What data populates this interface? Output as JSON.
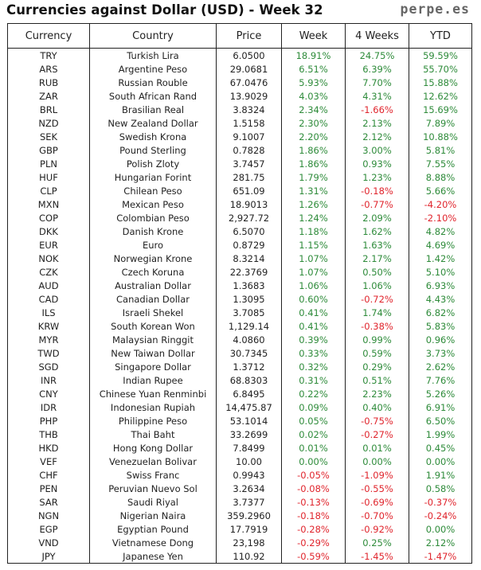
{
  "header": {
    "title": "Currencies against Dollar (USD) - Week 32",
    "site": "perpe.es"
  },
  "columns": [
    "Currency",
    "Country",
    "Price",
    "Week",
    "4 Weeks",
    "YTD"
  ],
  "colors": {
    "positive": "#2e8b3a",
    "negative": "#e0242c"
  },
  "rows": [
    {
      "currency": "TRY",
      "country": "Turkish Lira",
      "price": "6.0500",
      "week": "18.91%",
      "weeks4": "24.75%",
      "ytd": "59.59%"
    },
    {
      "currency": "ARS",
      "country": "Argentine Peso",
      "price": "29.0681",
      "week": "6.51%",
      "weeks4": "6.39%",
      "ytd": "55.70%"
    },
    {
      "currency": "RUB",
      "country": "Russian Rouble",
      "price": "67.0476",
      "week": "5.93%",
      "weeks4": "7.70%",
      "ytd": "15.88%"
    },
    {
      "currency": "ZAR",
      "country": "South African Rand",
      "price": "13.9029",
      "week": "4.03%",
      "weeks4": "4.31%",
      "ytd": "12.62%"
    },
    {
      "currency": "BRL",
      "country": "Brasilian Real",
      "price": "3.8324",
      "week": "2.34%",
      "weeks4": "-1.66%",
      "ytd": "15.69%"
    },
    {
      "currency": "NZD",
      "country": "New Zealand Dollar",
      "price": "1.5158",
      "week": "2.30%",
      "weeks4": "2.13%",
      "ytd": "7.89%"
    },
    {
      "currency": "SEK",
      "country": "Swedish Krona",
      "price": "9.1007",
      "week": "2.20%",
      "weeks4": "2.12%",
      "ytd": "10.88%"
    },
    {
      "currency": "GBP",
      "country": "Pound Sterling",
      "price": "0.7828",
      "week": "1.86%",
      "weeks4": "3.00%",
      "ytd": "5.81%"
    },
    {
      "currency": "PLN",
      "country": "Polish Zloty",
      "price": "3.7457",
      "week": "1.86%",
      "weeks4": "0.93%",
      "ytd": "7.55%"
    },
    {
      "currency": "HUF",
      "country": "Hungarian Forint",
      "price": "281.75",
      "week": "1.79%",
      "weeks4": "1.23%",
      "ytd": "8.88%"
    },
    {
      "currency": "CLP",
      "country": "Chilean Peso",
      "price": "651.09",
      "week": "1.31%",
      "weeks4": "-0.18%",
      "ytd": "5.66%"
    },
    {
      "currency": "MXN",
      "country": "Mexican Peso",
      "price": "18.9013",
      "week": "1.26%",
      "weeks4": "-0.77%",
      "ytd": "-4.20%"
    },
    {
      "currency": "COP",
      "country": "Colombian Peso",
      "price": "2,927.72",
      "week": "1.24%",
      "weeks4": "2.09%",
      "ytd": "-2.10%"
    },
    {
      "currency": "DKK",
      "country": "Danish Krone",
      "price": "6.5070",
      "week": "1.18%",
      "weeks4": "1.62%",
      "ytd": "4.82%"
    },
    {
      "currency": "EUR",
      "country": "Euro",
      "price": "0.8729",
      "week": "1.15%",
      "weeks4": "1.63%",
      "ytd": "4.69%"
    },
    {
      "currency": "NOK",
      "country": "Norwegian Krone",
      "price": "8.3214",
      "week": "1.07%",
      "weeks4": "2.17%",
      "ytd": "1.42%"
    },
    {
      "currency": "CZK",
      "country": "Czech Koruna",
      "price": "22.3769",
      "week": "1.07%",
      "weeks4": "0.50%",
      "ytd": "5.10%"
    },
    {
      "currency": "AUD",
      "country": "Australian Dollar",
      "price": "1.3683",
      "week": "1.06%",
      "weeks4": "1.06%",
      "ytd": "6.93%"
    },
    {
      "currency": "CAD",
      "country": "Canadian Dollar",
      "price": "1.3095",
      "week": "0.60%",
      "weeks4": "-0.72%",
      "ytd": "4.43%"
    },
    {
      "currency": "ILS",
      "country": "Israeli Shekel",
      "price": "3.7085",
      "week": "0.41%",
      "weeks4": "1.74%",
      "ytd": "6.82%"
    },
    {
      "currency": "KRW",
      "country": "South Korean Won",
      "price": "1,129.14",
      "week": "0.41%",
      "weeks4": "-0.38%",
      "ytd": "5.83%"
    },
    {
      "currency": "MYR",
      "country": "Malaysian Ringgit",
      "price": "4.0860",
      "week": "0.39%",
      "weeks4": "0.99%",
      "ytd": "0.96%"
    },
    {
      "currency": "TWD",
      "country": "New Taiwan Dollar",
      "price": "30.7345",
      "week": "0.33%",
      "weeks4": "0.59%",
      "ytd": "3.73%"
    },
    {
      "currency": "SGD",
      "country": "Singapore Dollar",
      "price": "1.3712",
      "week": "0.32%",
      "weeks4": "0.29%",
      "ytd": "2.62%"
    },
    {
      "currency": "INR",
      "country": "Indian Rupee",
      "price": "68.8303",
      "week": "0.31%",
      "weeks4": "0.51%",
      "ytd": "7.76%"
    },
    {
      "currency": "CNY",
      "country": "Chinese Yuan Renminbi",
      "price": "6.8495",
      "week": "0.22%",
      "weeks4": "2.23%",
      "ytd": "5.26%"
    },
    {
      "currency": "IDR",
      "country": "Indonesian Rupiah",
      "price": "14,475.87",
      "week": "0.09%",
      "weeks4": "0.40%",
      "ytd": "6.91%"
    },
    {
      "currency": "PHP",
      "country": "Philippine Peso",
      "price": "53.1014",
      "week": "0.05%",
      "weeks4": "-0.75%",
      "ytd": "6.50%"
    },
    {
      "currency": "THB",
      "country": "Thai Baht",
      "price": "33.2699",
      "week": "0.02%",
      "weeks4": "-0.27%",
      "ytd": "1.99%"
    },
    {
      "currency": "HKD",
      "country": "Hong Kong Dollar",
      "price": "7.8499",
      "week": "0.01%",
      "weeks4": "0.01%",
      "ytd": "0.45%"
    },
    {
      "currency": "VEF",
      "country": "Venezuelan Bolivar",
      "price": "10.00",
      "week": "0.00%",
      "weeks4": "0.00%",
      "ytd": "0.00%"
    },
    {
      "currency": "CHF",
      "country": "Swiss Franc",
      "price": "0.9943",
      "week": "-0.05%",
      "weeks4": "-1.09%",
      "ytd": "1.91%"
    },
    {
      "currency": "PEN",
      "country": "Peruvian Nuevo Sol",
      "price": "3.2634",
      "week": "-0.08%",
      "weeks4": "-0.55%",
      "ytd": "0.58%"
    },
    {
      "currency": "SAR",
      "country": "Saudi Riyal",
      "price": "3.7377",
      "week": "-0.13%",
      "weeks4": "-0.69%",
      "ytd": "-0.37%"
    },
    {
      "currency": "NGN",
      "country": "Nigerian Naira",
      "price": "359.2960",
      "week": "-0.18%",
      "weeks4": "-0.70%",
      "ytd": "-0.24%"
    },
    {
      "currency": "EGP",
      "country": "Egyptian Pound",
      "price": "17.7919",
      "week": "-0.28%",
      "weeks4": "-0.92%",
      "ytd": "0.00%"
    },
    {
      "currency": "VND",
      "country": "Vietnamese Dong",
      "price": "23,198",
      "week": "-0.29%",
      "weeks4": "0.25%",
      "ytd": "2.12%"
    },
    {
      "currency": "JPY",
      "country": "Japanese Yen",
      "price": "110.92",
      "week": "-0.59%",
      "weeks4": "-1.45%",
      "ytd": "-1.47%"
    }
  ]
}
